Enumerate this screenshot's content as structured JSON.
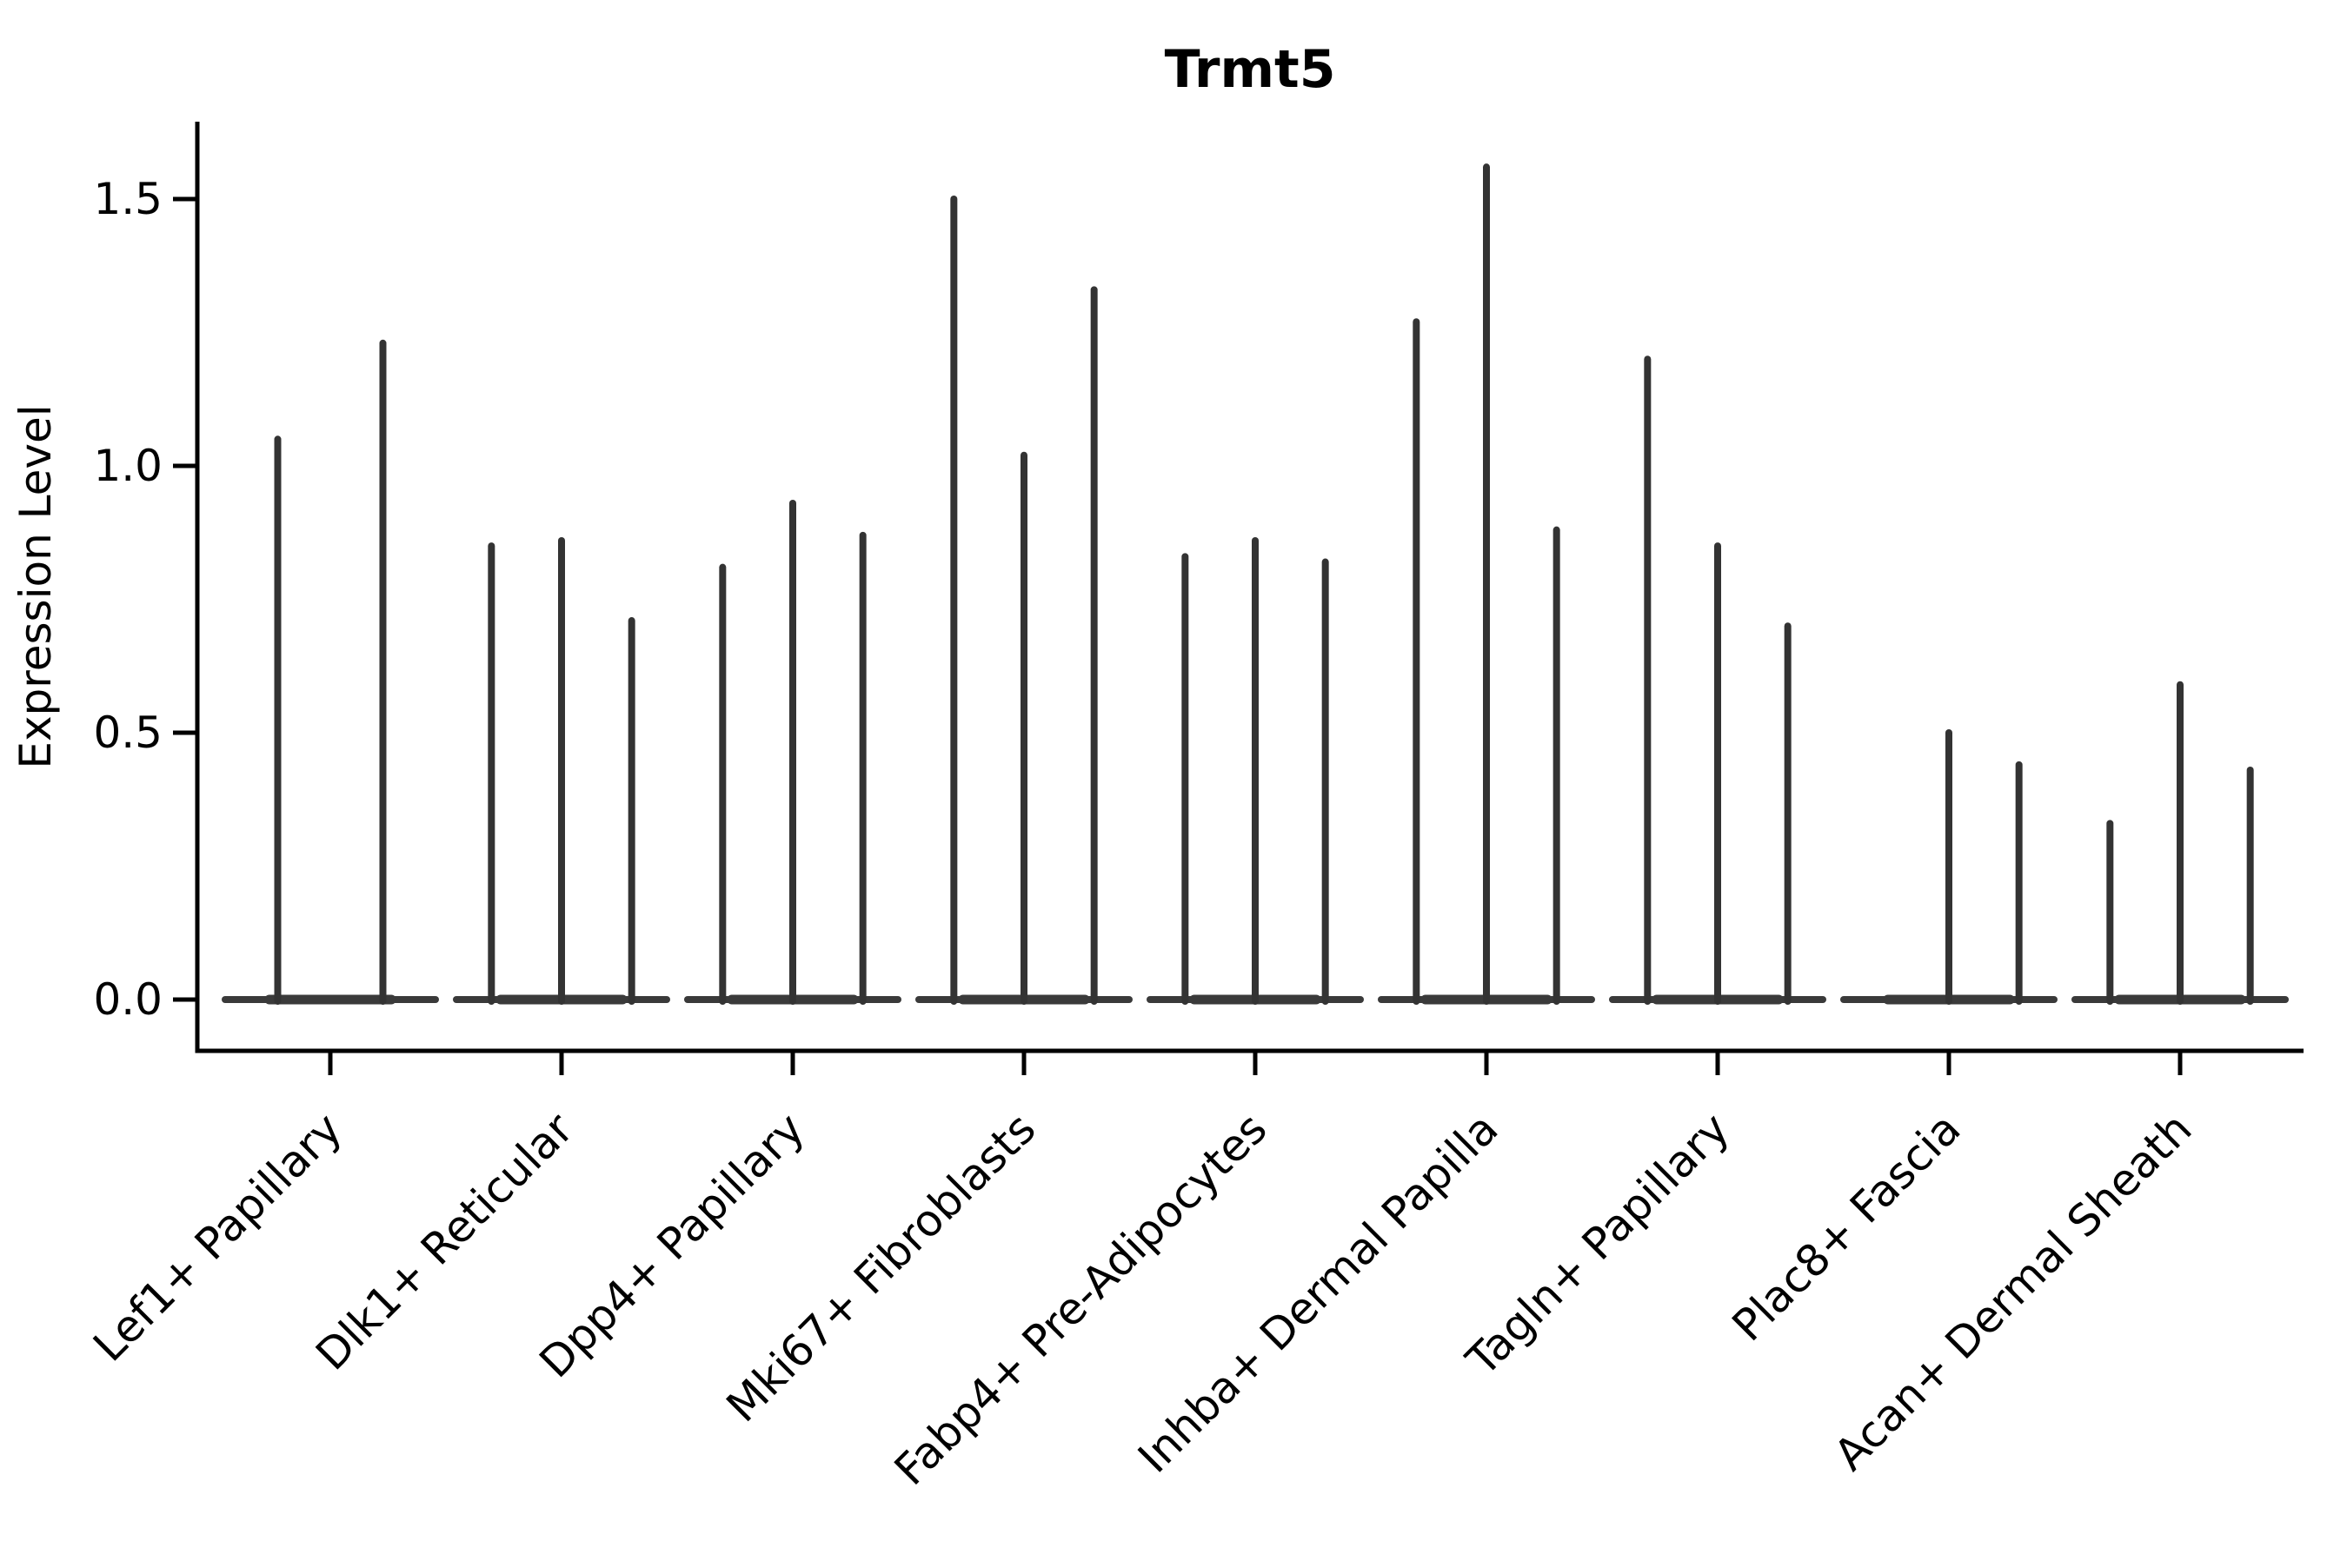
{
  "chart_data": {
    "type": "violin",
    "title": "Trmt5",
    "xlabel": "",
    "ylabel": "Expression Level",
    "yticks": [
      0.0,
      0.5,
      1.0,
      1.5
    ],
    "ylim": [
      -0.1,
      1.65
    ],
    "grid": false,
    "legend": "none",
    "categories": [
      "Lef1+ Papillary",
      "Dlk1+ Reticular",
      "Dpp4+ Papillary",
      "Mki67+ Fibroblasts",
      "Fabp4+ Pre-Adipocytes",
      "Inhba+ Dermal Papilla",
      "Tagln+ Papillary",
      "Plac8+ Fascia",
      "Acan+ Dermal Sheath"
    ],
    "groups": [
      {
        "category": "Lef1+ Papillary",
        "violin_max": [
          1.05,
          1.23
        ]
      },
      {
        "category": "Dlk1+ Reticular",
        "violin_max": [
          0.85,
          0.86,
          0.71
        ]
      },
      {
        "category": "Dpp4+ Papillary",
        "violin_max": [
          0.81,
          0.93,
          0.87
        ]
      },
      {
        "category": "Mki67+ Fibroblasts",
        "violin_max": [
          1.5,
          1.02,
          1.33
        ]
      },
      {
        "category": "Fabp4+ Pre-Adipocytes",
        "violin_max": [
          0.83,
          0.86,
          0.82
        ]
      },
      {
        "category": "Inhba+ Dermal Papilla",
        "violin_max": [
          1.27,
          1.56,
          0.88
        ]
      },
      {
        "category": "Tagln+ Papillary",
        "violin_max": [
          1.2,
          0.85,
          0.7
        ]
      },
      {
        "category": "Plac8+ Fascia",
        "violin_max": [
          0.0,
          0.5,
          0.44
        ]
      },
      {
        "category": "Acan+ Dermal Sheath",
        "violin_max": [
          0.33,
          0.59,
          0.43
        ]
      }
    ],
    "note": "Expression is zero for most cells, so each violin renders as a flat base at 0 with a thin vertical spike up to its maximum value",
    "colors": {
      "violin": "#333333",
      "violin_base": "#3a3a3a",
      "axis": "#000000",
      "text": "#000000",
      "background": "#ffffff"
    }
  }
}
